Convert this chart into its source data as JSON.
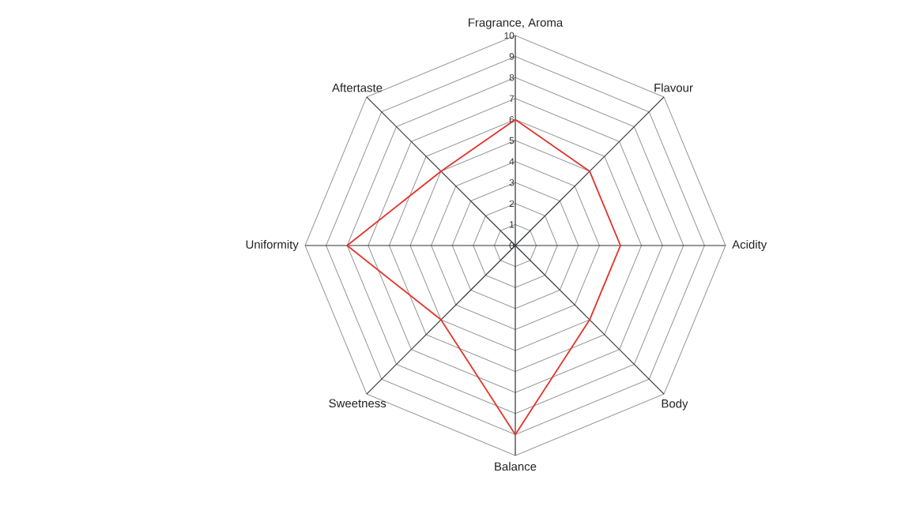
{
  "chart_data": {
    "type": "radar",
    "categories": [
      "Fragrance, Aroma",
      "Flavour",
      "Acidity",
      "Body",
      "Balance",
      "Sweetness",
      "Uniformity",
      "Aftertaste"
    ],
    "series": [
      {
        "color": "#e2342b",
        "values": [
          6,
          5,
          5,
          5,
          9,
          5,
          8,
          5
        ]
      }
    ],
    "ylim": [
      0,
      10
    ],
    "yticks": [
      0,
      1,
      2,
      3,
      4,
      5,
      6,
      7,
      8,
      9,
      10
    ],
    "grid": true
  }
}
